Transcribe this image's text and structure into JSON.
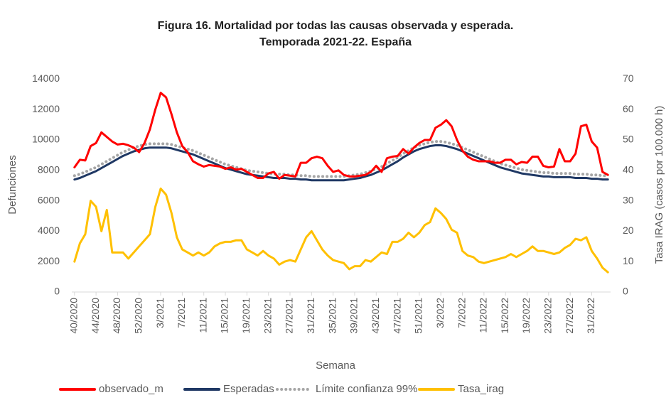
{
  "chart_data": {
    "type": "line",
    "title": "Figura 16. Mortalidad por todas las causas observada y esperada.",
    "subtitle": "Temporada 2021-22. España",
    "x_label": "Semana",
    "y_label": "Defunciones",
    "y2_label": "Tasa IRAG (casos por 100.000 h)",
    "categories": [
      "40/2020",
      null,
      null,
      null,
      "44/2020",
      null,
      null,
      null,
      "48/2020",
      null,
      null,
      null,
      "52/2020",
      null,
      null,
      null,
      "3/2021",
      null,
      null,
      null,
      "7/2021",
      null,
      null,
      null,
      "11/2021",
      null,
      null,
      null,
      "15/2021",
      null,
      null,
      null,
      "19/2021",
      null,
      null,
      null,
      "23/2021",
      null,
      null,
      null,
      "27/2021",
      null,
      null,
      null,
      "31/2021",
      null,
      null,
      null,
      "35/2021",
      null,
      null,
      null,
      "39/2021",
      null,
      null,
      null,
      "43/2021",
      null,
      null,
      null,
      "47/2021",
      null,
      null,
      null,
      "51/2021",
      null,
      null,
      null,
      "3/2022",
      null,
      null,
      null,
      "7/2022",
      null,
      null,
      null,
      "11/2022",
      null,
      null,
      null,
      "15/2022",
      null,
      null,
      null,
      "19/2022",
      null,
      null,
      null,
      "23/2022",
      null,
      null,
      null,
      "27/2022",
      null,
      null,
      null,
      "31/2022",
      null,
      null,
      null
    ],
    "ylim": [
      0,
      15000
    ],
    "yticks": [
      0,
      2000,
      4000,
      6000,
      8000,
      10000,
      12000,
      14000
    ],
    "y2lim": [
      0,
      75
    ],
    "y2ticks": [
      0,
      10,
      20,
      30,
      40,
      50,
      60,
      70
    ],
    "legend": "bottom",
    "series": [
      {
        "name": "observado_m",
        "color": "#ff0000",
        "style": "solid",
        "values": [
          8200,
          8700,
          8650,
          9600,
          9800,
          10500,
          10200,
          9900,
          9700,
          9750,
          9650,
          9500,
          9200,
          9800,
          10700,
          12000,
          13100,
          12800,
          11700,
          10500,
          9600,
          9200,
          8600,
          8400,
          8250,
          8350,
          8300,
          8250,
          8100,
          8200,
          8050,
          8100,
          7900,
          7700,
          7500,
          7500,
          7800,
          7900,
          7450,
          7700,
          7650,
          7600,
          8500,
          8500,
          8800,
          8900,
          8800,
          8300,
          7900,
          8000,
          7700,
          7600,
          7600,
          7650,
          7700,
          7900,
          8300,
          7900,
          8800,
          8900,
          8950,
          9400,
          9100,
          9500,
          9800,
          10000,
          10000,
          10800,
          11000,
          11300,
          10900,
          10000,
          9300,
          8900,
          8700,
          8600,
          8600,
          8600,
          8500,
          8500,
          8700,
          8700,
          8400,
          8550,
          8500,
          8900,
          8900,
          8300,
          8200,
          8250,
          9400,
          8600,
          8600,
          9100,
          10900,
          11000,
          9900,
          9500,
          7900,
          7700
        ]
      },
      {
        "name": "Esperadas",
        "color": "#1f3864",
        "style": "solid",
        "values": [
          7400,
          7500,
          7650,
          7800,
          7950,
          8150,
          8350,
          8550,
          8750,
          8950,
          9100,
          9250,
          9350,
          9450,
          9500,
          9500,
          9500,
          9500,
          9450,
          9350,
          9250,
          9150,
          9050,
          8900,
          8750,
          8600,
          8450,
          8300,
          8150,
          8050,
          7950,
          7850,
          7750,
          7700,
          7650,
          7600,
          7550,
          7500,
          7500,
          7500,
          7450,
          7450,
          7400,
          7400,
          7350,
          7350,
          7350,
          7350,
          7350,
          7350,
          7350,
          7400,
          7450,
          7500,
          7600,
          7700,
          7850,
          8000,
          8200,
          8400,
          8600,
          8850,
          9050,
          9250,
          9400,
          9500,
          9600,
          9650,
          9650,
          9600,
          9500,
          9400,
          9250,
          9100,
          8950,
          8800,
          8650,
          8500,
          8350,
          8200,
          8100,
          8000,
          7900,
          7800,
          7750,
          7700,
          7650,
          7600,
          7600,
          7550,
          7550,
          7550,
          7550,
          7500,
          7500,
          7500,
          7450,
          7450,
          7400,
          7400
        ]
      },
      {
        "name": "Límite confianza 99%",
        "color": "#a6a6a6",
        "style": "dotted",
        "values": [
          7650,
          7750,
          7900,
          8050,
          8200,
          8400,
          8600,
          8800,
          9000,
          9200,
          9350,
          9500,
          9600,
          9700,
          9750,
          9750,
          9750,
          9750,
          9700,
          9600,
          9500,
          9400,
          9300,
          9150,
          9000,
          8850,
          8700,
          8550,
          8400,
          8300,
          8200,
          8100,
          8000,
          7950,
          7900,
          7850,
          7800,
          7750,
          7750,
          7750,
          7700,
          7700,
          7650,
          7650,
          7600,
          7600,
          7600,
          7600,
          7600,
          7600,
          7600,
          7650,
          7700,
          7750,
          7850,
          7950,
          8100,
          8250,
          8450,
          8650,
          8850,
          9100,
          9300,
          9500,
          9650,
          9750,
          9850,
          9900,
          9900,
          9850,
          9750,
          9650,
          9500,
          9350,
          9200,
          9050,
          8900,
          8750,
          8600,
          8450,
          8350,
          8250,
          8150,
          8050,
          8000,
          7950,
          7900,
          7850,
          7850,
          7800,
          7800,
          7800,
          7800,
          7750,
          7750,
          7750,
          7700,
          7700,
          7650,
          7650
        ]
      },
      {
        "name": "Tasa_irag",
        "color": "#ffc000",
        "style": "solid",
        "axis": "y2",
        "values": [
          10,
          16,
          19,
          30,
          28,
          20,
          27,
          13,
          13,
          13,
          11,
          13,
          15,
          17,
          19,
          28,
          34,
          32,
          26,
          18,
          14,
          13,
          12,
          13,
          12,
          13,
          15,
          16,
          16.5,
          16.5,
          17,
          17,
          14,
          13,
          12,
          13.5,
          12,
          11,
          9,
          10,
          10.5,
          10,
          14,
          18,
          20,
          17,
          14,
          12,
          10.5,
          10,
          9.5,
          7.5,
          8.5,
          8.5,
          10.5,
          10,
          11.5,
          13,
          12.5,
          16.5,
          16.5,
          17.5,
          19.5,
          18,
          19.5,
          22,
          23,
          27.5,
          26,
          24,
          20.5,
          19.5,
          13.5,
          12,
          11.5,
          10,
          9.5,
          10,
          10.5,
          11,
          11.5,
          12.5,
          11.5,
          12.5,
          13.5,
          15,
          13.5,
          13.5,
          13,
          12.5,
          13,
          14.5,
          15.5,
          17.5,
          17,
          18,
          13.5,
          11,
          8,
          6.5
        ]
      }
    ]
  }
}
